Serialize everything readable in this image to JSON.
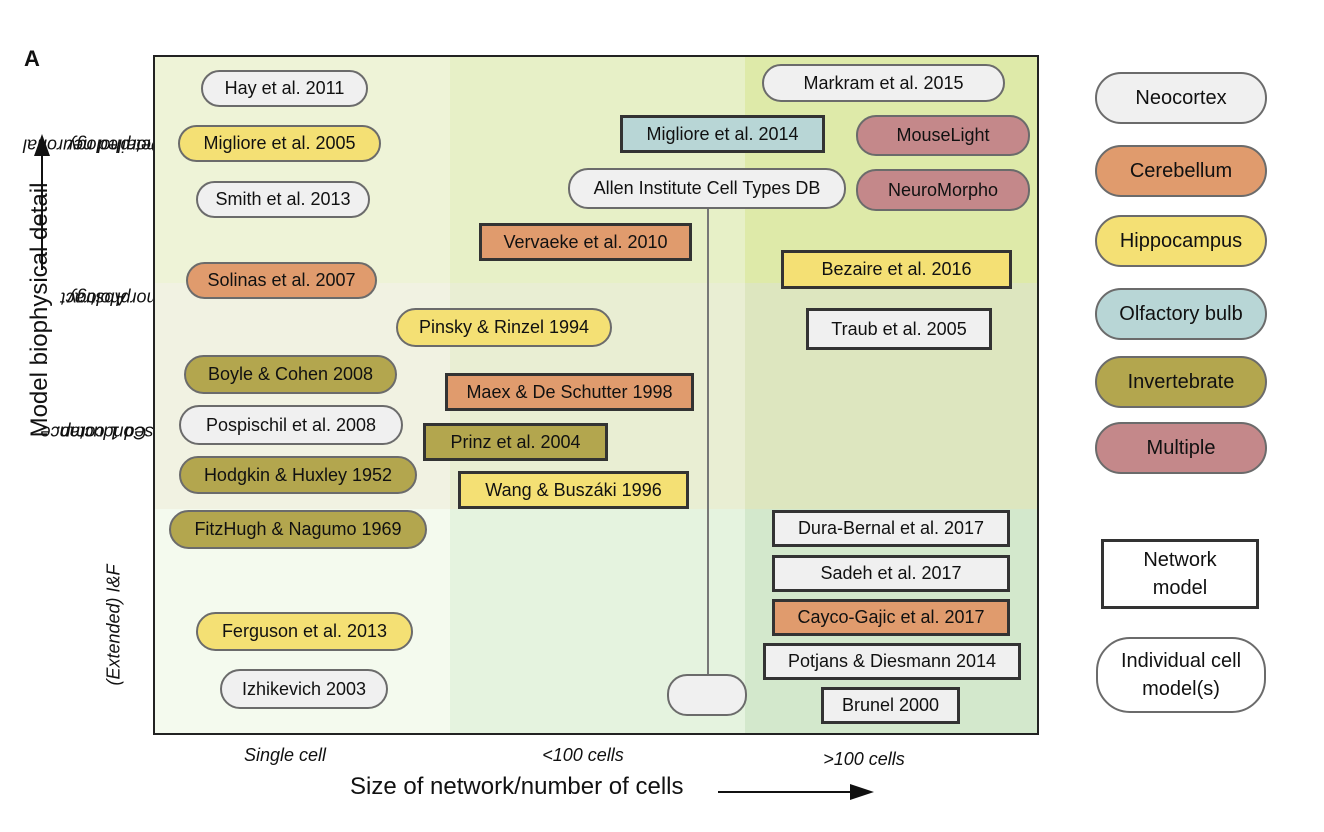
{
  "panel_letter": "A",
  "y_axis_label": "Model biophysical detail",
  "x_axis_label": "Size of network/number of cells",
  "row_labels": {
    "detailed": [
      "Detailed neuronal",
      "morphology"
    ],
    "abstract": [
      "Abstract",
      "morphology"
    ],
    "conductance": [
      "Conductance",
      "based 1 comp."
    ],
    "iaf": "(Extended) I&F"
  },
  "x_ticks": [
    "Single cell",
    "<100 cells",
    ">100 cells"
  ],
  "colors": {
    "neocortex": "#f0f0f0",
    "cerebellum": "#e09b6d",
    "hippocampus": "#f4e074",
    "olfactory": "#b8d6d6",
    "invertebrate": "#b3a64e",
    "multiple": "#c4888a"
  },
  "models": {
    "hay2011": "Hay et al. 2011",
    "markram2015": "Markram et al. 2015",
    "migliore2005": "Migliore et al. 2005",
    "migliore2014": "Migliore et al. 2014",
    "mouselight": "MouseLight",
    "smith2013": "Smith et al. 2013",
    "allen": "Allen Institute Cell Types DB",
    "neuromorpho": "NeuroMorpho",
    "vervaeke2010": "Vervaeke et al. 2010",
    "solinas2007": "Solinas et al. 2007",
    "bezaire2016": "Bezaire et al. 2016",
    "pinsky1994": "Pinsky & Rinzel 1994",
    "traub2005": "Traub et al. 2005",
    "boyle2008": "Boyle & Cohen 2008",
    "maex1998": "Maex & De Schutter 1998",
    "pospischil2008": "Pospischil et al. 2008",
    "prinz2004": "Prinz et al. 2004",
    "hodgkin1952": "Hodgkin & Huxley 1952",
    "wang1996": "Wang & Buszáki 1996",
    "fitzhugh1969": "FitzHugh & Nagumo 1969",
    "durabernal2017": "Dura-Bernal et al. 2017",
    "sadeh2017": "Sadeh et al. 2017",
    "ferguson2013": "Ferguson et al. 2013",
    "caycogajic2017": "Cayco-Gajic et al. 2017",
    "potjans2014": "Potjans & Diesmann 2014",
    "izhikevich2003": "Izhikevich 2003",
    "brunel2000": "Brunel 2000"
  },
  "legend": {
    "neocortex": "Neocortex",
    "cerebellum": "Cerebellum",
    "hippocampus": "Hippocampus",
    "olfactory": "Olfactory bulb",
    "invertebrate": "Invertebrate",
    "multiple": "Multiple",
    "network": [
      "Network",
      "model"
    ],
    "individual": [
      "Individual cell",
      "model(s)"
    ]
  }
}
